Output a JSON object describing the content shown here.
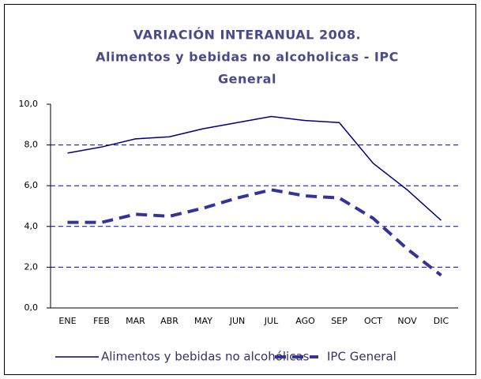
{
  "chart_data": {
    "type": "line",
    "title": [
      "VARIACIÓN INTERANUAL 2008.",
      "Alimentos y bebidas no alcoholicas - IPC",
      "General"
    ],
    "categories": [
      "ENE",
      "FEB",
      "MAR",
      "ABR",
      "MAY",
      "JUN",
      "JUL",
      "AGO",
      "SEP",
      "OCT",
      "NOV",
      "DIC"
    ],
    "series": [
      {
        "name": "Alimentos y bebidas no alcohólicas",
        "color": "#000080",
        "dashed": false,
        "values": [
          7.6,
          7.9,
          8.3,
          8.4,
          8.8,
          9.1,
          9.4,
          9.2,
          9.1,
          7.1,
          5.8,
          4.3
        ]
      },
      {
        "name": "IPC General",
        "color": "#333399",
        "dashed": true,
        "values": [
          4.2,
          4.2,
          4.6,
          4.5,
          4.9,
          5.4,
          5.8,
          5.5,
          5.4,
          4.4,
          2.9,
          1.6
        ]
      }
    ],
    "ylim": [
      0,
      10
    ],
    "yticks": [
      {
        "value": 0,
        "label": "0,0"
      },
      {
        "value": 2,
        "label": "2,0"
      },
      {
        "value": 4,
        "label": "4,0"
      },
      {
        "value": 6,
        "label": "6,0"
      },
      {
        "value": 8,
        "label": "8,0"
      },
      {
        "value": 10,
        "label": "10,0"
      }
    ],
    "grid": true,
    "legend": "bottom"
  }
}
